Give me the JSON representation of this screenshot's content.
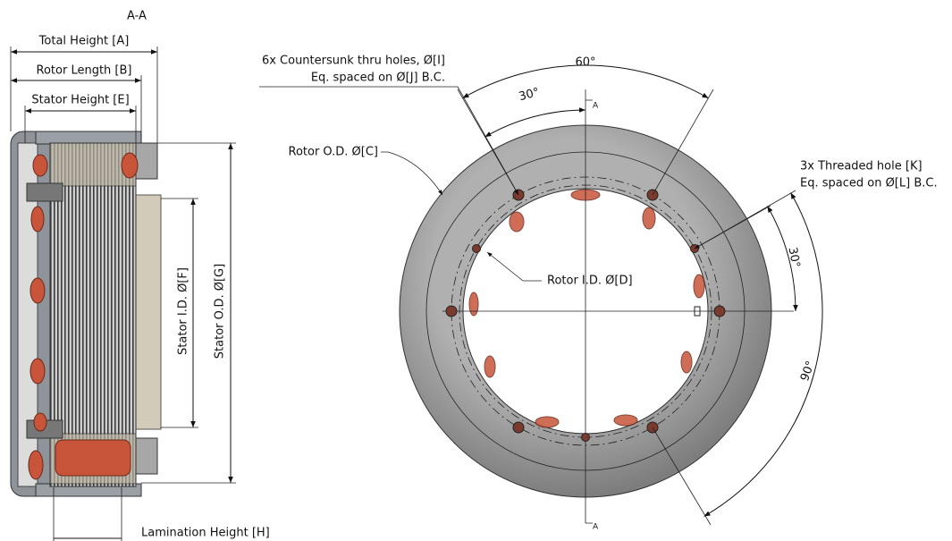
{
  "section_view": {
    "title": "A-A",
    "total_height": "Total Height [A]",
    "rotor_length": "Rotor Length [B]",
    "stator_height": "Stator Height [E]",
    "stator_id": "Stator I.D. Ø[F]",
    "stator_od": "Stator O.D. Ø[G]",
    "lamination_height": "Lamination Height [H]"
  },
  "front_view": {
    "countersunk_holes": "6x Countersunk thru holes, Ø[I]",
    "countersunk_spacing": "Eq. spaced on Ø[J] B.C.",
    "angle_top": "60°",
    "angle_top_half": "30°",
    "rotor_od": "Rotor O.D. Ø[C]",
    "threaded_holes": "3x Threaded hole [K]",
    "threaded_spacing": "Eq. spaced on Ø[L] B.C.",
    "angle_right": "30°",
    "rotor_id": "Rotor I.D. Ø[D]",
    "angle_bottom": "90°",
    "section_mark_top": "A",
    "section_mark_bottom": "A"
  }
}
